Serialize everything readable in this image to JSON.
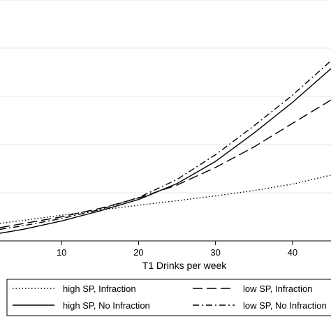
{
  "chart_data": {
    "type": "line",
    "title": "",
    "xlabel": "T1 Drinks per week",
    "ylabel": "",
    "xlim": [
      2,
      45
    ],
    "ylim": [
      0,
      1
    ],
    "x_ticks": [
      10,
      20,
      30,
      40
    ],
    "grid": "horizontal",
    "legend_position": "bottom",
    "x": [
      2,
      5,
      10,
      15,
      20,
      25,
      30,
      35,
      40,
      45
    ],
    "series": [
      {
        "name": "high SP, Infraction",
        "line_style": "dotted",
        "color": "#000000",
        "values": [
          0.073,
          0.085,
          0.107,
          0.128,
          0.148,
          0.167,
          0.187,
          0.209,
          0.236,
          0.273
        ]
      },
      {
        "name": "low SP, Infraction",
        "line_style": "long-dash",
        "color": "#000000",
        "values": [
          0.055,
          0.072,
          0.1,
          0.135,
          0.178,
          0.232,
          0.305,
          0.39,
          0.488,
          0.585
        ]
      },
      {
        "name": "high SP, No Infraction",
        "line_style": "solid",
        "color": "#000000",
        "values": [
          0.032,
          0.048,
          0.083,
          0.125,
          0.172,
          0.238,
          0.33,
          0.448,
          0.575,
          0.715
        ]
      },
      {
        "name": "low SP, No Infraction",
        "line_style": "dash-dot",
        "color": "#000000",
        "values": [
          0.048,
          0.063,
          0.093,
          0.13,
          0.18,
          0.255,
          0.358,
          0.478,
          0.605,
          0.748
        ]
      }
    ]
  }
}
